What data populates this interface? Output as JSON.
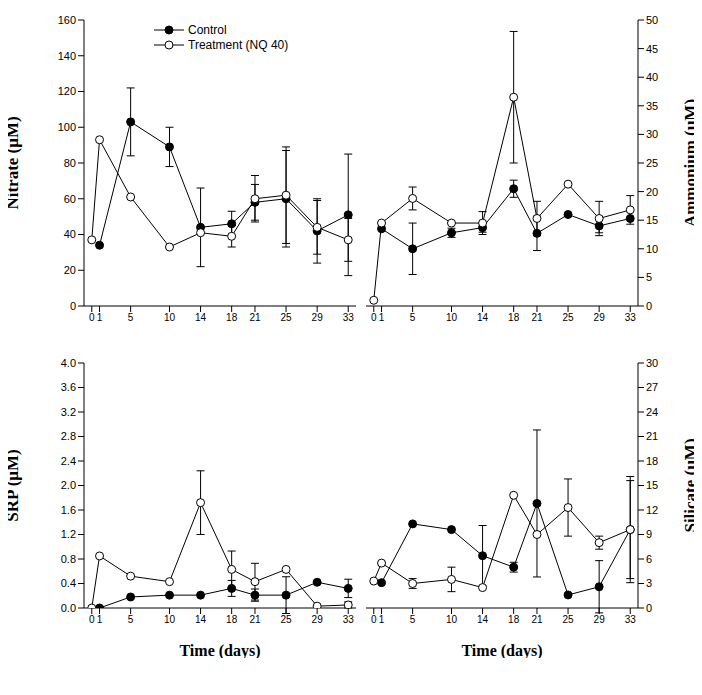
{
  "chart_data": [
    {
      "type": "line",
      "y_label": "Nitrate (μM)",
      "legend": "upper left",
      "grid": false,
      "xlim": [
        -1,
        34
      ],
      "xticks": [
        0,
        1,
        5,
        10,
        14,
        18,
        21,
        25,
        29,
        33
      ],
      "ylim": [
        0,
        160
      ],
      "yticks": [
        0,
        20,
        40,
        60,
        80,
        100,
        120,
        140,
        160
      ],
      "series": [
        {
          "name": "Control",
          "color": "#000000",
          "marker": "filled circle",
          "x": [
            1,
            5,
            10,
            14,
            18,
            21,
            25,
            29,
            33
          ],
          "values": [
            34,
            103,
            89,
            44,
            46,
            58,
            60,
            42,
            51
          ],
          "errors": [
            null,
            19,
            11,
            22,
            7,
            10,
            27,
            18,
            34
          ]
        },
        {
          "name": "Treatment (NQ 40)",
          "color": "#000000",
          "marker": "open circle",
          "x": [
            0,
            1,
            5,
            10,
            14,
            18,
            21,
            25,
            29,
            33
          ],
          "values": [
            37,
            93,
            61,
            33,
            41,
            39,
            60,
            62,
            44,
            37
          ],
          "errors": [
            null,
            null,
            null,
            null,
            null,
            6,
            13,
            27,
            15,
            12
          ]
        }
      ]
    },
    {
      "type": "line",
      "y_label": "Ammonium (μM)",
      "grid": false,
      "xlim": [
        -1,
        34
      ],
      "xticks": [
        0,
        1,
        5,
        10,
        14,
        18,
        21,
        25,
        29,
        33
      ],
      "ylim": [
        0,
        50
      ],
      "yticks": [
        0,
        5,
        10,
        15,
        20,
        25,
        30,
        35,
        40,
        45,
        50
      ],
      "series": [
        {
          "name": "Control",
          "color": "#000000",
          "marker": "filled circle",
          "x": [
            1,
            5,
            10,
            14,
            18,
            21,
            25,
            29,
            33
          ],
          "values": [
            13.5,
            10,
            12.8,
            13.7,
            20.5,
            12.7,
            16,
            14,
            15.3
          ],
          "errors": [
            null,
            4.5,
            0.8,
            0.8,
            1.5,
            3,
            null,
            1.2,
            null
          ]
        },
        {
          "name": "Treatment (NQ 40)",
          "color": "#000000",
          "marker": "open circle",
          "x": [
            0,
            1,
            5,
            10,
            14,
            18,
            21,
            25,
            29,
            33
          ],
          "values": [
            1,
            14.5,
            18.8,
            14.5,
            14.5,
            36.5,
            15.3,
            21.3,
            15.3,
            16.8
          ],
          "errors": [
            null,
            null,
            2,
            null,
            2,
            11.5,
            3,
            null,
            3,
            2.5
          ]
        }
      ]
    },
    {
      "type": "line",
      "y_label": "SRP (μM)",
      "x_label": "Time (days)",
      "grid": false,
      "xlim": [
        -1,
        34
      ],
      "xticks": [
        0,
        1,
        5,
        10,
        14,
        18,
        21,
        25,
        29,
        33
      ],
      "ylim": [
        0,
        4
      ],
      "yticks": [
        {
          "value": 0,
          "label": "0.0"
        },
        {
          "value": 0.4,
          "label": "0.4"
        },
        {
          "value": 0.8,
          "label": "0.8"
        },
        {
          "value": 1.2,
          "label": "1.2"
        },
        {
          "value": 1.6,
          "label": "1.6"
        },
        {
          "value": 2,
          "label": "2.0"
        },
        {
          "value": 2.4,
          "label": "2.4"
        },
        {
          "value": 2.8,
          "label": "2.8"
        },
        {
          "value": 3.2,
          "label": "3.2"
        },
        {
          "value": 3.6,
          "label": "3.6"
        },
        {
          "value": 4,
          "label": "4.0"
        }
      ],
      "series": [
        {
          "name": "Control",
          "color": "#000000",
          "marker": "filled circle",
          "x": [
            1,
            5,
            10,
            14,
            18,
            21,
            25,
            29,
            33
          ],
          "values": [
            0,
            0.18,
            0.21,
            0.21,
            0.32,
            0.21,
            0.21,
            0.42,
            0.32
          ],
          "errors": [
            null,
            null,
            null,
            null,
            0.13,
            0.1,
            0.3,
            null,
            0.15
          ]
        },
        {
          "name": "Treatment (NQ 40)",
          "color": "#000000",
          "marker": "open circle",
          "x": [
            0,
            1,
            5,
            10,
            14,
            18,
            21,
            25,
            29,
            33
          ],
          "values": [
            0,
            0.85,
            0.52,
            0.43,
            1.72,
            0.63,
            0.43,
            0.63,
            0.03,
            0.05
          ],
          "errors": [
            null,
            null,
            null,
            null,
            0.52,
            0.3,
            0.3,
            null,
            null,
            0.05
          ]
        }
      ]
    },
    {
      "type": "line",
      "y_label": "Silicate (μM)",
      "x_label": "Time (days)",
      "grid": false,
      "xlim": [
        -1,
        34
      ],
      "xticks": [
        0,
        1,
        5,
        10,
        14,
        18,
        21,
        25,
        29,
        33
      ],
      "ylim": [
        0,
        30
      ],
      "yticks": [
        0,
        3,
        6,
        9,
        12,
        15,
        18,
        21,
        24,
        27,
        30
      ],
      "series": [
        {
          "name": "Control",
          "color": "#000000",
          "marker": "filled circle",
          "x": [
            1,
            5,
            10,
            14,
            18,
            21,
            25,
            29,
            33
          ],
          "values": [
            3.1,
            10.3,
            9.6,
            6.4,
            5,
            12.8,
            1.6,
            2.6,
            9.6
          ],
          "errors": [
            null,
            null,
            null,
            3.7,
            0.6,
            9,
            null,
            3.2,
            6
          ]
        },
        {
          "name": "Treatment (NQ 40)",
          "color": "#000000",
          "marker": "open circle",
          "x": [
            0,
            1,
            5,
            10,
            14,
            18,
            21,
            25,
            29,
            33
          ],
          "values": [
            3.3,
            5.5,
            3,
            3.5,
            2.5,
            13.8,
            9,
            12.3,
            8,
            9.6
          ],
          "errors": [
            null,
            null,
            0.6,
            1.5,
            null,
            null,
            null,
            3.5,
            0.8,
            6.5
          ]
        }
      ]
    }
  ]
}
